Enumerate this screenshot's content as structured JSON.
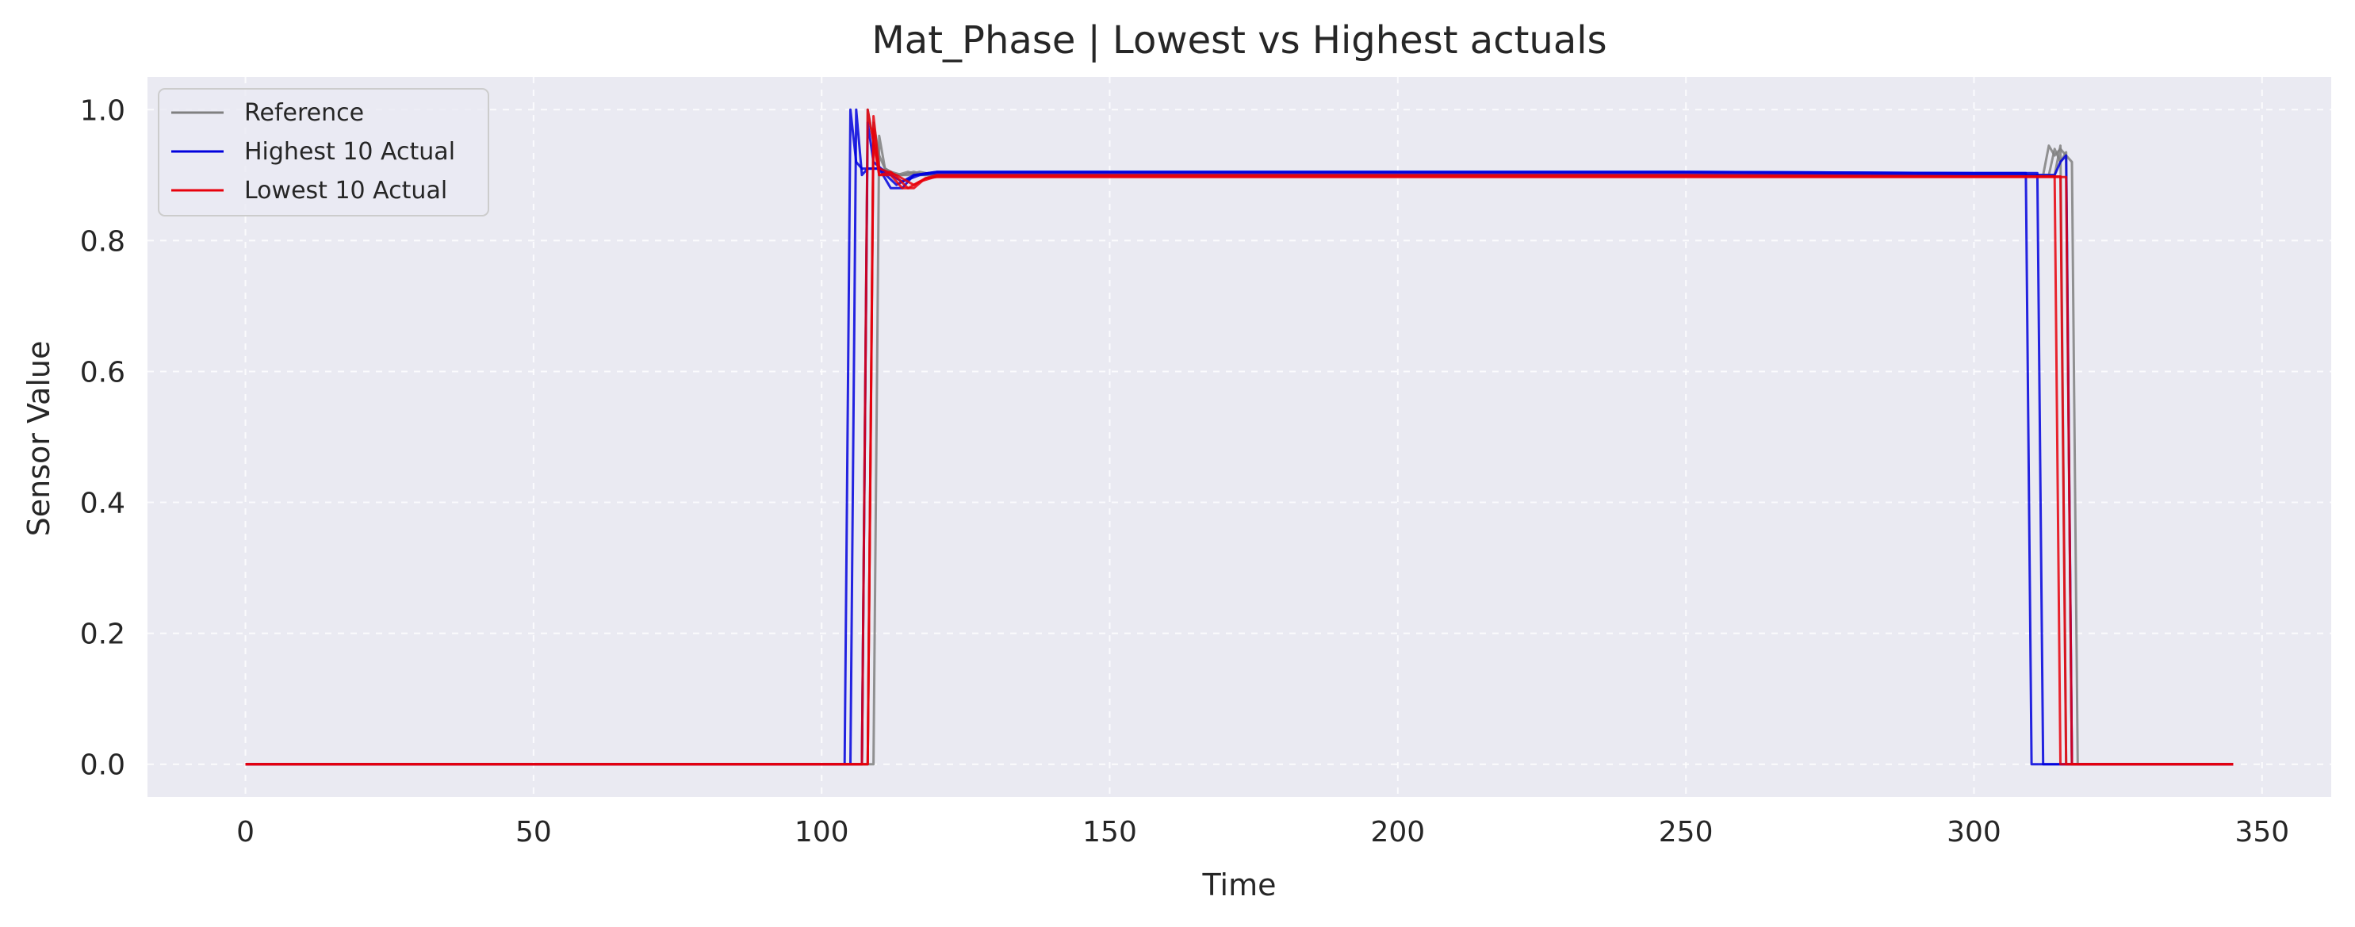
{
  "chart_data": {
    "type": "line",
    "title": "Mat_Phase | Lowest vs Highest actuals",
    "xlabel": "Time",
    "ylabel": "Sensor Value",
    "xlim": [
      -17,
      362
    ],
    "ylim": [
      -0.05,
      1.05
    ],
    "xticks": [
      0,
      50,
      100,
      150,
      200,
      250,
      300,
      350
    ],
    "yticks": [
      0.0,
      0.2,
      0.4,
      0.6,
      0.8,
      1.0
    ],
    "xtick_labels": [
      "0",
      "50",
      "100",
      "150",
      "200",
      "250",
      "300",
      "350"
    ],
    "ytick_labels": [
      "0.0",
      "0.2",
      "0.4",
      "0.6",
      "0.8",
      "1.0"
    ],
    "grid": true,
    "legend_position": "top-left",
    "colors": {
      "background": "#eaeaf2",
      "Reference": "#808080",
      "Highest 10 Actual": "#0000dd",
      "Lowest 10 Actual": "#e8000b"
    },
    "series": [
      {
        "name": "Reference",
        "lines": [
          {
            "x": [
              0,
              107,
              108,
              109,
              110,
              112,
              114,
              116,
              118,
              122,
              150,
              200,
              250,
              300,
              312,
              313,
              314,
              315,
              316,
              317,
              318,
              345
            ],
            "y": [
              0,
              0,
              1.0,
              0.95,
              0.91,
              0.905,
              0.9,
              0.905,
              0.9,
              0.9,
              0.9,
              0.9,
              0.9,
              0.9,
              0.9,
              0.945,
              0.93,
              0.94,
              0.93,
              0.92,
              0,
              0
            ]
          },
          {
            "x": [
              0,
              108,
              109,
              110,
              111,
              113,
              115,
              117,
              120,
              150,
              200,
              250,
              300,
              313,
              314,
              315,
              316,
              317,
              345
            ],
            "y": [
              0,
              0,
              0.98,
              0.93,
              0.91,
              0.9,
              0.905,
              0.9,
              0.9,
              0.9,
              0.9,
              0.9,
              0.9,
              0.9,
              0.94,
              0.92,
              0.935,
              0,
              0
            ]
          },
          {
            "x": [
              0,
              109,
              110,
              111,
              113,
              115,
              117,
              120,
              150,
              200,
              250,
              300,
              314,
              315,
              316,
              345
            ],
            "y": [
              0,
              0,
              0.96,
              0.91,
              0.9,
              0.9,
              0.905,
              0.9,
              0.9,
              0.9,
              0.9,
              0.9,
              0.9,
              0.945,
              0,
              0
            ]
          }
        ]
      },
      {
        "name": "Highest 10 Actual",
        "lines": [
          {
            "x": [
              0,
              104,
              105,
              106,
              107,
              110,
              112,
              114,
              116,
              120,
              150,
              200,
              250,
              300,
              309,
              310,
              345
            ],
            "y": [
              0,
              0,
              1.0,
              0.92,
              0.91,
              0.91,
              0.88,
              0.88,
              0.9,
              0.905,
              0.905,
              0.905,
              0.905,
              0.903,
              0.903,
              0,
              0
            ]
          },
          {
            "x": [
              0,
              105,
              106,
              107,
              108,
              110,
              113,
              116,
              120,
              150,
              200,
              250,
              300,
              311,
              312,
              345
            ],
            "y": [
              0,
              0,
              1.0,
              0.9,
              0.91,
              0.91,
              0.885,
              0.9,
              0.905,
              0.905,
              0.905,
              0.905,
              0.903,
              0.903,
              0,
              0
            ]
          },
          {
            "x": [
              0,
              107,
              108,
              109,
              111,
              114,
              117,
              120,
              150,
              200,
              250,
              300,
              314,
              315,
              316,
              317,
              345
            ],
            "y": [
              0,
              0,
              0.98,
              0.92,
              0.905,
              0.89,
              0.9,
              0.903,
              0.903,
              0.903,
              0.903,
              0.9,
              0.9,
              0.92,
              0.93,
              0,
              0
            ]
          }
        ]
      },
      {
        "name": "Lowest 10 Actual",
        "lines": [
          {
            "x": [
              0,
              107,
              108,
              109,
              110,
              112,
              114,
              116,
              118,
              120,
              150,
              200,
              250,
              300,
              314,
              315,
              345
            ],
            "y": [
              0,
              0,
              1.0,
              0.95,
              0.9,
              0.9,
              0.88,
              0.88,
              0.895,
              0.9,
              0.9,
              0.9,
              0.9,
              0.898,
              0.898,
              0,
              0
            ]
          },
          {
            "x": [
              0,
              108,
              109,
              110,
              112,
              115,
              117,
              120,
              150,
              200,
              250,
              300,
              315,
              316,
              345
            ],
            "y": [
              0,
              0,
              0.97,
              0.9,
              0.905,
              0.88,
              0.89,
              0.898,
              0.898,
              0.898,
              0.898,
              0.898,
              0.898,
              0,
              0
            ]
          },
          {
            "x": [
              0,
              108,
              109,
              110,
              113,
              116,
              118,
              120,
              150,
              200,
              250,
              300,
              316,
              317,
              345
            ],
            "y": [
              0,
              0,
              0.99,
              0.91,
              0.9,
              0.885,
              0.895,
              0.897,
              0.897,
              0.897,
              0.897,
              0.897,
              0.897,
              0,
              0
            ]
          }
        ]
      }
    ]
  }
}
